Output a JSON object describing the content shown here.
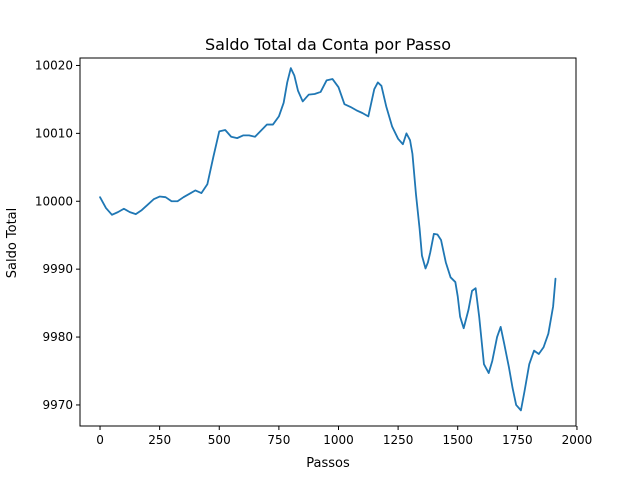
{
  "chart_data": {
    "type": "line",
    "title": "Saldo Total da Conta por Passo",
    "xlabel": "Passos",
    "ylabel": "Saldo Total",
    "xlim": [
      -84,
      1996
    ],
    "ylim": [
      9966.9,
      10021.1
    ],
    "xticks": [
      0,
      250,
      500,
      750,
      1000,
      1250,
      1500,
      1750,
      2000
    ],
    "xtick_labels": [
      "0",
      "250",
      "500",
      "750",
      "1000",
      "1250",
      "1500",
      "1750",
      "2000"
    ],
    "yticks": [
      9970,
      9980,
      9990,
      10000,
      10010,
      10020
    ],
    "ytick_labels": [
      "9970",
      "9980",
      "9990",
      "10000",
      "10010",
      "10020"
    ],
    "grid": false,
    "line_color": "#1f77b4",
    "series": [
      {
        "x": [
          0,
          25,
          50,
          75,
          100,
          125,
          150,
          175,
          200,
          225,
          250,
          275,
          300,
          325,
          350,
          375,
          400,
          425,
          450,
          475,
          500,
          525,
          550,
          575,
          600,
          625,
          650,
          675,
          700,
          725,
          750,
          770,
          785,
          800,
          815,
          830,
          850,
          875,
          900,
          925,
          950,
          975,
          1000,
          1025,
          1050,
          1075,
          1100,
          1125,
          1150,
          1165,
          1180,
          1200,
          1225,
          1250,
          1270,
          1285,
          1300,
          1310,
          1325,
          1340,
          1350,
          1365,
          1375,
          1385,
          1400,
          1415,
          1430,
          1450,
          1470,
          1490,
          1500,
          1510,
          1525,
          1545,
          1560,
          1575,
          1590,
          1610,
          1630,
          1645,
          1665,
          1680,
          1695,
          1715,
          1730,
          1745,
          1765,
          1780,
          1800,
          1820,
          1840,
          1860,
          1880,
          1900,
          1910
        ],
        "values": [
          10000.6,
          9999.0,
          9998.0,
          9998.4,
          9998.9,
          9998.4,
          9998.1,
          9998.7,
          9999.5,
          10000.3,
          10000.7,
          10000.6,
          10000.0,
          10000.0,
          10000.6,
          10001.1,
          10001.6,
          10001.2,
          10002.5,
          10006.5,
          10010.3,
          10010.5,
          10009.5,
          10009.3,
          10009.7,
          10009.7,
          10009.5,
          10010.4,
          10011.3,
          10011.3,
          10012.5,
          10014.5,
          10017.5,
          10019.6,
          10018.5,
          10016.3,
          10014.7,
          10015.7,
          10015.8,
          10016.1,
          10017.8,
          10018.0,
          10016.8,
          10014.3,
          10013.9,
          10013.4,
          10013.0,
          10012.5,
          10016.5,
          10017.5,
          10017.0,
          10014.0,
          10011.0,
          10009.2,
          10008.4,
          10010.0,
          10009.0,
          10007.0,
          10001.0,
          9996.0,
          9992.0,
          9990.1,
          9991.0,
          9992.5,
          9995.2,
          9995.1,
          9994.3,
          9991.0,
          9988.8,
          9988.1,
          9986.0,
          9983.0,
          9981.3,
          9984.0,
          9986.8,
          9987.2,
          9983.0,
          9976.0,
          9974.7,
          9976.5,
          9980.0,
          9981.5,
          9979.0,
          9975.5,
          9972.5,
          9970.0,
          9969.2,
          9972.0,
          9976.0,
          9978.0,
          9977.5,
          9978.5,
          9980.5,
          9984.5,
          9988.6
        ]
      }
    ]
  }
}
